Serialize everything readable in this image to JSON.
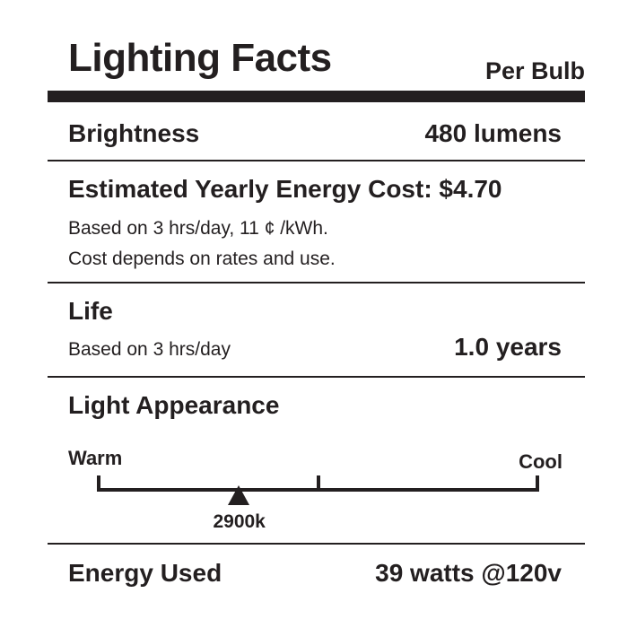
{
  "header": {
    "title": "Lighting Facts",
    "per_bulb": "Per Bulb"
  },
  "brightness": {
    "label": "Brightness",
    "value": "480 lumens"
  },
  "cost": {
    "label": "Estimated Yearly Energy Cost: $4.70",
    "note_1": "Based on 3 hrs/day, 11 ¢ /kWh.",
    "note_2": "Cost depends on rates and use."
  },
  "life": {
    "label": "Life",
    "note": "Based on 3 hrs/day",
    "value": "1.0 years"
  },
  "appearance": {
    "label": "Light Appearance",
    "warm_label": "Warm",
    "cool_label": "Cool",
    "marker_label": "2900k",
    "marker_fraction": 0.32
  },
  "energy": {
    "label": "Energy Used",
    "value": "39 watts @120v"
  },
  "colors": {
    "ink": "#231f20",
    "background": "#ffffff"
  }
}
